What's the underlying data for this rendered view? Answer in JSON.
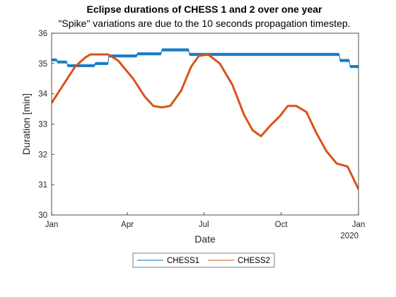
{
  "chart_data": {
    "type": "line",
    "title": "Eclipse durations of CHESS 1 and 2 over one year",
    "subtitle": "\"Spike\" variations are due to the 10 seconds propagation timestep.",
    "xlabel": "Date",
    "ylabel": "Duration [min]",
    "ylim": [
      30,
      36
    ],
    "yticks": [
      30,
      31,
      32,
      33,
      34,
      35,
      36
    ],
    "xlim": [
      "2019-01-01",
      "2020-01-01"
    ],
    "xticks": [
      {
        "date": "2019-01-01",
        "label": "Jan"
      },
      {
        "date": "2019-04-01",
        "label": "Apr"
      },
      {
        "date": "2019-07-01",
        "label": "Jul"
      },
      {
        "date": "2019-10-01",
        "label": "Oct"
      },
      {
        "date": "2020-01-01",
        "label": "Jan"
      }
    ],
    "x_secondary_label": "2020",
    "grid": false,
    "legend": {
      "placement": "bottom",
      "entries": [
        "CHESS1",
        "CHESS2"
      ]
    },
    "colors": {
      "CHESS1": "#0072BD",
      "CHESS2": "#D95319"
    },
    "series": [
      {
        "name": "CHESS1",
        "color": "#0072BD",
        "x": [
          "2019-01-01",
          "2019-01-07",
          "2019-01-08",
          "2019-01-19",
          "2019-01-20",
          "2019-02-21",
          "2019-02-22",
          "2019-03-09",
          "2019-03-10",
          "2019-04-12",
          "2019-04-13",
          "2019-05-11",
          "2019-05-12",
          "2019-06-13",
          "2019-06-14",
          "2019-12-09",
          "2019-12-10",
          "2019-12-21",
          "2019-12-22",
          "2020-01-01"
        ],
        "y": [
          35.12,
          35.12,
          35.05,
          35.05,
          34.93,
          34.93,
          35.0,
          35.0,
          35.25,
          35.25,
          35.32,
          35.32,
          35.45,
          35.45,
          35.3,
          35.3,
          35.1,
          35.1,
          34.9,
          34.9
        ],
        "band": 0.05
      },
      {
        "name": "CHESS2",
        "color": "#D95319",
        "x": [
          "2019-01-01",
          "2019-01-15",
          "2019-01-29",
          "2019-02-10",
          "2019-02-16",
          "2019-03-09",
          "2019-03-21",
          "2019-04-08",
          "2019-04-22",
          "2019-05-02",
          "2019-05-12",
          "2019-05-22",
          "2019-06-04",
          "2019-06-16",
          "2019-06-25",
          "2019-07-06",
          "2019-07-20",
          "2019-08-04",
          "2019-08-18",
          "2019-08-28",
          "2019-09-07",
          "2019-09-18",
          "2019-09-29",
          "2019-10-09",
          "2019-10-19",
          "2019-10-31",
          "2019-11-12",
          "2019-11-24",
          "2019-12-06",
          "2019-12-19",
          "2020-01-01"
        ],
        "y": [
          33.7,
          34.3,
          34.9,
          35.2,
          35.3,
          35.3,
          35.1,
          34.5,
          33.9,
          33.6,
          33.55,
          33.6,
          34.1,
          34.9,
          35.25,
          35.3,
          35.0,
          34.3,
          33.3,
          32.8,
          32.6,
          32.95,
          33.25,
          33.6,
          33.6,
          33.4,
          32.7,
          32.1,
          31.7,
          31.6,
          30.85
        ]
      }
    ]
  }
}
